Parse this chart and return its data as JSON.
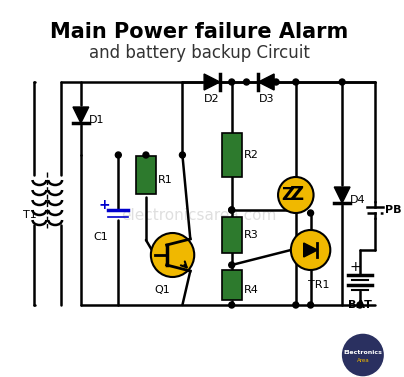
{
  "title_line1": "Main Power failure Alarm",
  "title_line2": "and battery backup Circuit",
  "bg_color": "#ffffff",
  "title_color": "#000000",
  "subtitle_color": "#333333",
  "green": "#2d7a2d",
  "yellow": "#f0b800",
  "black": "#000000",
  "blue": "#0000cc",
  "dark_navy": "#2a3060",
  "wire_color": "#000000",
  "watermark": "electronicsarea.com"
}
